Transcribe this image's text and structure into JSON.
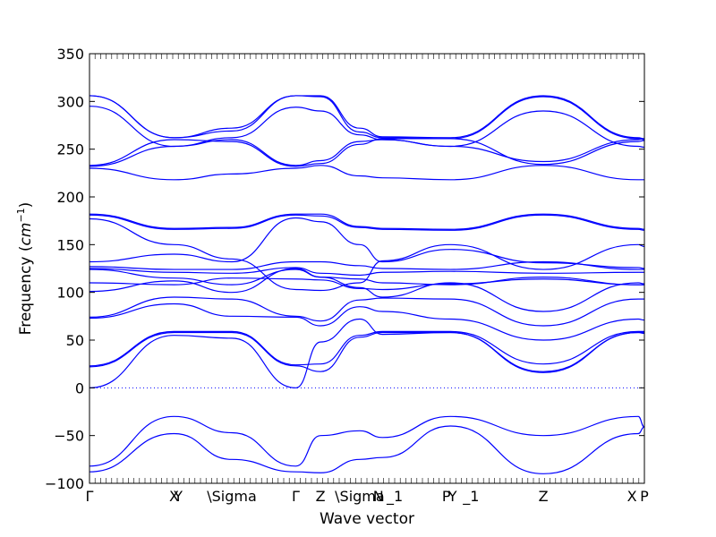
{
  "chart_data": {
    "type": "line",
    "title": "",
    "xlabel": "Wave vector",
    "ylabel": "Frequency",
    "ylabel_unit": "cm",
    "ylabel_unit_exp": "−1",
    "ylim": [
      -100,
      350
    ],
    "yticks": [
      -100,
      -50,
      0,
      50,
      100,
      150,
      200,
      250,
      300,
      350
    ],
    "xlim": [
      0,
      2.69
    ],
    "grid": false,
    "line_color": "#0000ff",
    "zero_line_color": "#0000ff",
    "high_symmetry_points": [
      {
        "label": "Γ",
        "x": 0.0
      },
      {
        "label": "X",
        "x": 0.41
      },
      {
        "label": "Y",
        "x": 0.43
      },
      {
        "label": "\\Sigma",
        "x": 0.69
      },
      {
        "label": "Γ",
        "x": 1.0
      },
      {
        "label": "Z",
        "x": 1.12
      },
      {
        "label": "\\Sigma",
        "x": 1.31
      },
      {
        "label": "N",
        "x": 1.4
      },
      {
        "label": "_1",
        "x": 1.48
      },
      {
        "label": "P",
        "x": 1.73
      },
      {
        "label": "Y",
        "x": 1.76
      },
      {
        "label": "_1",
        "x": 1.85
      },
      {
        "label": "Z",
        "x": 2.2
      },
      {
        "label": "X",
        "x": 2.63
      },
      {
        "label": "P",
        "x": 2.69
      }
    ],
    "branches": [
      {
        "x": [
          0,
          0.41,
          0.69,
          1.0,
          1.12,
          1.31,
          1.42,
          1.75,
          2.2,
          2.66,
          2.69
        ],
        "y": [
          306,
          262,
          272,
          306,
          306,
          272,
          263,
          262,
          306,
          262,
          261
        ]
      },
      {
        "x": [
          0,
          0.41,
          0.69,
          1.0,
          1.12,
          1.31,
          1.42,
          1.75,
          2.2,
          2.66,
          2.69
        ],
        "y": [
          306,
          262,
          269,
          306,
          305,
          268,
          262,
          261,
          305,
          261,
          260
        ]
      },
      {
        "x": [
          0,
          0.41,
          0.69,
          1.0,
          1.12,
          1.31,
          1.42,
          1.75,
          2.2,
          2.66,
          2.69
        ],
        "y": [
          295,
          253,
          262,
          294,
          290,
          265,
          260,
          253,
          290,
          253,
          252
        ]
      },
      {
        "x": [
          0,
          0.41,
          0.69,
          1.0,
          1.12,
          1.31,
          1.42,
          1.75,
          2.2,
          2.66,
          2.69
        ],
        "y": [
          233,
          260,
          258,
          232,
          235,
          255,
          261,
          261,
          234,
          258,
          259
        ]
      },
      {
        "x": [
          0,
          0.41,
          0.69,
          1.0,
          1.12,
          1.31,
          1.42,
          1.75,
          2.2,
          2.66,
          2.69
        ],
        "y": [
          232,
          253,
          260,
          233,
          238,
          258,
          260,
          253,
          237,
          260,
          261
        ]
      },
      {
        "x": [
          0,
          0.41,
          0.69,
          1.0,
          1.12,
          1.31,
          1.42,
          1.75,
          2.2,
          2.66,
          2.69
        ],
        "y": [
          230,
          218,
          224,
          230,
          233,
          222,
          220,
          218,
          233,
          218,
          218
        ]
      },
      {
        "x": [
          0,
          0.41,
          0.69,
          1.0,
          1.12,
          1.31,
          1.42,
          1.75,
          2.2,
          2.66,
          2.69
        ],
        "y": [
          182,
          167,
          168,
          182,
          182,
          169,
          167,
          166,
          182,
          167,
          166
        ]
      },
      {
        "x": [
          0,
          0.41,
          0.69,
          1.0,
          1.12,
          1.31,
          1.42,
          1.75,
          2.2,
          2.66,
          2.69
        ],
        "y": [
          181,
          166,
          167,
          181,
          180,
          168,
          166,
          165,
          181,
          166,
          165
        ]
      },
      {
        "x": [
          0,
          0.41,
          0.69,
          1.0,
          1.12,
          1.31,
          1.42,
          1.75,
          2.2,
          2.66,
          2.69
        ],
        "y": [
          177,
          150,
          135,
          103,
          102,
          110,
          133,
          150,
          124,
          150,
          148
        ]
      },
      {
        "x": [
          0,
          0.41,
          0.69,
          1.0,
          1.12,
          1.31,
          1.42,
          1.75,
          2.2,
          2.66,
          2.69
        ],
        "y": [
          132,
          140,
          132,
          178,
          174,
          150,
          132,
          145,
          131,
          126,
          125
        ]
      },
      {
        "x": [
          0,
          0.41,
          0.69,
          1.0,
          1.12,
          1.31,
          1.42,
          1.75,
          2.2,
          2.66,
          2.69
        ],
        "y": [
          127,
          124,
          124,
          132,
          132,
          128,
          125,
          124,
          132,
          124,
          124
        ]
      },
      {
        "x": [
          0,
          0.41,
          0.69,
          1.0,
          1.12,
          1.31,
          1.42,
          1.75,
          2.2,
          2.66,
          2.69
        ],
        "y": [
          125,
          121,
          120,
          126,
          120,
          118,
          121,
          122,
          120,
          121,
          121
        ]
      },
      {
        "x": [
          0,
          0.41,
          0.69,
          1.0,
          1.12,
          1.31,
          1.42,
          1.75,
          2.2,
          2.66,
          2.69
        ],
        "y": [
          124,
          115,
          108,
          124,
          116,
          114,
          110,
          108,
          116,
          108,
          108
        ]
      },
      {
        "x": [
          0,
          0.41,
          0.69,
          1.0,
          1.12,
          1.31,
          1.42,
          1.75,
          2.2,
          2.66,
          2.69
        ],
        "y": [
          110,
          108,
          115,
          114,
          113,
          104,
          103,
          109,
          114,
          108,
          108
        ]
      },
      {
        "x": [
          0,
          0.41,
          0.69,
          1.0,
          1.12,
          1.31,
          1.42,
          1.75,
          2.2,
          2.66,
          2.69
        ],
        "y": [
          101,
          112,
          100,
          125,
          116,
          105,
          95,
          110,
          80,
          110,
          109
        ]
      },
      {
        "x": [
          0,
          0.41,
          0.69,
          1.0,
          1.12,
          1.31,
          1.42,
          1.75,
          2.2,
          2.66,
          2.69
        ],
        "y": [
          74,
          95,
          93,
          75,
          70,
          92,
          94,
          93,
          65,
          93,
          93
        ]
      },
      {
        "x": [
          0,
          0.41,
          0.69,
          1.0,
          1.12,
          1.31,
          1.42,
          1.75,
          2.2,
          2.66,
          2.69
        ],
        "y": [
          73,
          88,
          75,
          74,
          65,
          85,
          80,
          72,
          50,
          72,
          71
        ]
      },
      {
        "x": [
          0,
          0.41,
          0.69,
          1.0,
          1.12,
          1.31,
          1.42,
          1.75,
          2.2,
          2.66,
          2.69
        ],
        "y": [
          23,
          59,
          59,
          24,
          25,
          55,
          59,
          59,
          25,
          59,
          59
        ]
      },
      {
        "x": [
          0,
          0.41,
          0.69,
          1.0,
          1.12,
          1.31,
          1.42,
          1.75,
          2.2,
          2.66,
          2.69
        ],
        "y": [
          22,
          58,
          58,
          23,
          17,
          53,
          58,
          58,
          17,
          58,
          58
        ]
      },
      {
        "x": [
          0,
          0.41,
          0.69,
          1.0,
          1.12,
          1.31,
          1.42,
          1.75,
          2.2,
          2.66,
          2.69
        ],
        "y": [
          0,
          55,
          52,
          0,
          48,
          72,
          56,
          58,
          16,
          58,
          57
        ]
      },
      {
        "x": [
          0,
          0.41,
          0.69,
          1.0,
          1.12,
          1.31,
          1.42,
          1.75,
          2.2,
          2.66,
          2.69
        ],
        "y": [
          -82,
          -30,
          -47,
          -82,
          -50,
          -45,
          -52,
          -30,
          -50,
          -30,
          -41
        ]
      },
      {
        "x": [
          0,
          0.41,
          0.69,
          1.0,
          1.12,
          1.31,
          1.42,
          1.75,
          2.2,
          2.66,
          2.69
        ],
        "y": [
          -88,
          -48,
          -75,
          -88,
          -89,
          -75,
          -73,
          -40,
          -90,
          -48,
          -41
        ]
      }
    ]
  }
}
